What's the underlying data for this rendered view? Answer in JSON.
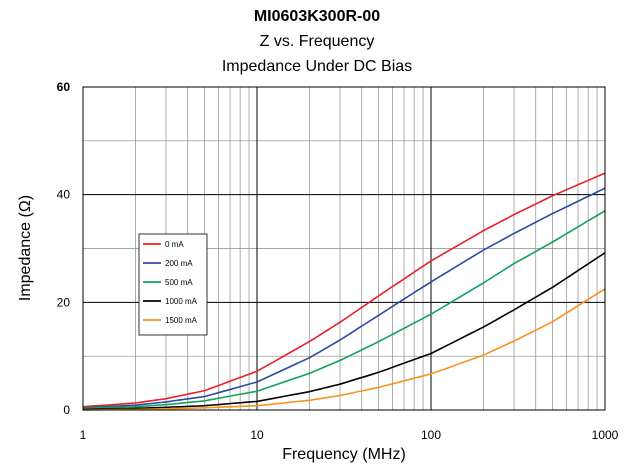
{
  "chart_data": {
    "type": "line",
    "title": "MI0603K300R-00",
    "subtitle1": "Z vs. Frequency",
    "subtitle2": "Impedance Under DC Bias",
    "xlabel": "Frequency (MHz)",
    "ylabel": "Impedance (Ω)",
    "xscale": "log",
    "xlim": [
      1,
      1000
    ],
    "ylim": [
      0,
      60
    ],
    "x_ticks": [
      "1",
      "10",
      "100",
      "1000"
    ],
    "y_ticks": [
      "0",
      "20",
      "40",
      "60"
    ],
    "grid": true,
    "legend_position": "left",
    "x": [
      1,
      2,
      3,
      5,
      10,
      20,
      30,
      50,
      100,
      200,
      300,
      500,
      1000
    ],
    "series": [
      {
        "name": "0 mA",
        "color": "#e8202a",
        "values": [
          0.6,
          1.3,
          2.1,
          3.6,
          7.2,
          12.7,
          16.3,
          21.2,
          27.7,
          33.3,
          36.3,
          39.8,
          44.0
        ]
      },
      {
        "name": "200 mA",
        "color": "#2b4ba0",
        "values": [
          0.4,
          0.9,
          1.5,
          2.5,
          5.2,
          9.7,
          13.0,
          17.6,
          23.8,
          29.7,
          32.8,
          36.5,
          41.2
        ]
      },
      {
        "name": "500 mA",
        "color": "#12a05a",
        "values": [
          0.3,
          0.6,
          1.0,
          1.7,
          3.5,
          6.8,
          9.2,
          12.7,
          17.8,
          23.6,
          27.2,
          31.2,
          37.0
        ]
      },
      {
        "name": "1000 mA",
        "color": "#000000",
        "values": [
          0.1,
          0.3,
          0.5,
          0.8,
          1.6,
          3.4,
          4.8,
          7.0,
          10.5,
          15.4,
          18.6,
          22.8,
          29.2
        ]
      },
      {
        "name": "1500 mA",
        "color": "#f7921e",
        "values": [
          0.0,
          0.1,
          0.2,
          0.4,
          0.8,
          1.8,
          2.7,
          4.2,
          6.7,
          10.2,
          12.8,
          16.4,
          22.5
        ]
      }
    ]
  }
}
